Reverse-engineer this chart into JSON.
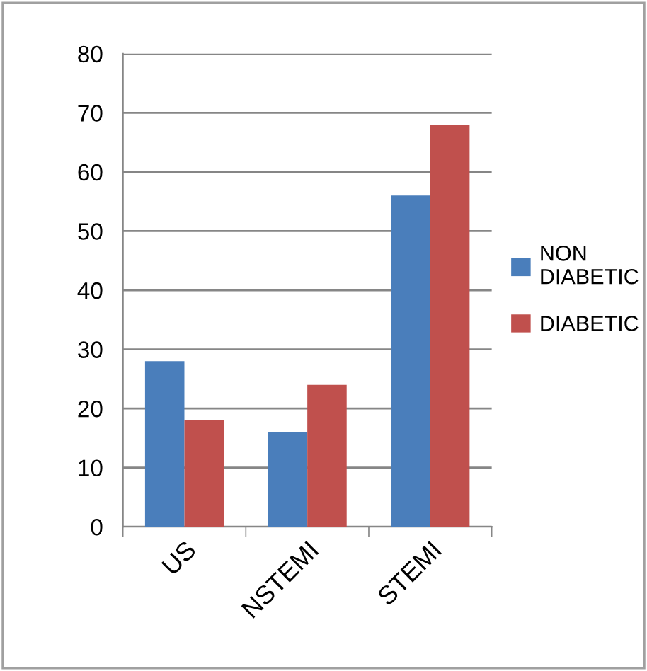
{
  "chart_data": {
    "type": "bar",
    "categories": [
      "US",
      "NSTEMI",
      "STEMI"
    ],
    "series": [
      {
        "name": "NON DIABETIC",
        "color": "#4a7ebb",
        "values": [
          28,
          16,
          56
        ]
      },
      {
        "name": "DIABETIC",
        "color": "#c0504d",
        "values": [
          18,
          24,
          68
        ]
      }
    ],
    "ylim": [
      0,
      80
    ],
    "yticks": [
      0,
      10,
      20,
      30,
      40,
      50,
      60,
      70,
      80
    ],
    "grid": "y",
    "legend": "right"
  }
}
